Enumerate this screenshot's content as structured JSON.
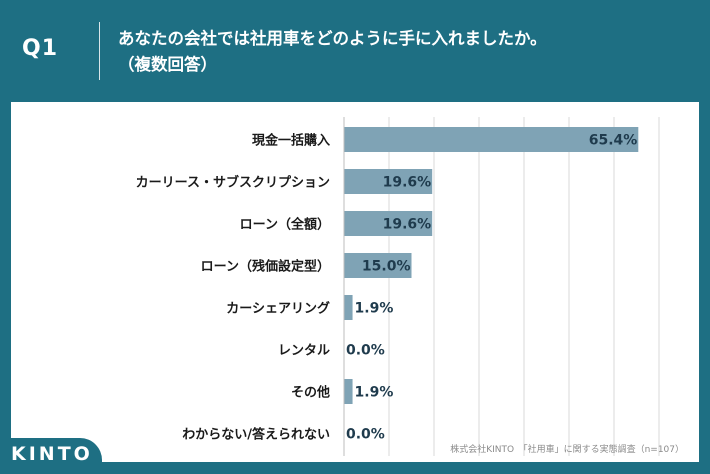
{
  "header": {
    "question_number": "Q1",
    "question_line1": "あなたの会社では社用車をどのように手に入れましたか。",
    "question_line2": "（複数回答）"
  },
  "footer": {
    "brand": "KINTO",
    "source_note": "株式会社KINTO　「社用車」に関する実態調査（n=107）"
  },
  "colors": {
    "header_bg": "#1e6f83",
    "bar": "#7fa3b5",
    "grid": "#d9d9d9"
  },
  "chart_data": {
    "type": "bar",
    "orientation": "horizontal",
    "title": "あなたの会社では社用車をどのように手に入れましたか。（複数回答）",
    "unit": "%",
    "categories": [
      "現金一括購入",
      "カーリース・サブスクリプション",
      "ローン（全額）",
      "ローン（残価設定型）",
      "カーシェアリング",
      "レンタル",
      "その他",
      "わからない/答えられない"
    ],
    "values": [
      65.4,
      19.6,
      19.6,
      15.0,
      1.9,
      0.0,
      1.9,
      0.0
    ],
    "value_labels": [
      "65.4%",
      "19.6%",
      "19.6%",
      "15.0%",
      "1.9%",
      "0.0%",
      "1.9%",
      "0.0%"
    ],
    "xlim": [
      0,
      70
    ],
    "gridlines": [
      0,
      10,
      20,
      30,
      40,
      50,
      60,
      70
    ]
  }
}
